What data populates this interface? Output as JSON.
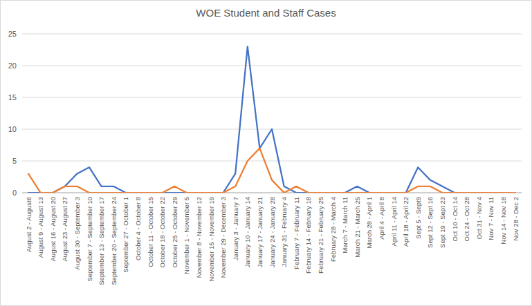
{
  "chart_data": {
    "type": "line",
    "title": "WOE Student and Staff Cases",
    "categories": [
      "August 2 - August6",
      "August 9 - August 13",
      "August 16 - August 20",
      "August 23 - August 27",
      "August 30 - September 3",
      "September 7 - September 10",
      "September 13 - September 17",
      "September 20 - September 24",
      "September 27 - October 1",
      "October 4 - October 8",
      "October 11 - October 15",
      "October 18 - October 22",
      "October 25 - October 29",
      "November 1 - November 5",
      "November 8 - November 12",
      "November 15 - November 19",
      "November 29 - December 3",
      "January 3 - January 7",
      "January 10 - January 14",
      "January 17 - January 21",
      "January 24 - January 28",
      "January 31 - February 4",
      "February 7 - February 11",
      "February 14 - February 18",
      "February 21 - February 25",
      "February 28 - March 4",
      "March 7 - March 11",
      "March 21 - March 25",
      "March 28 - April 1",
      "April 4 - April 8",
      "April 11 - April 14",
      "April 18 - April 22",
      "Sept 5 - Sept9",
      "Sept 12 - Sept 16",
      "Sept 19 - Sept 23",
      "Oct 10 - Oct 14",
      "Oct 24 - Oct 28",
      "Oct 31 - Nov 4",
      "Nov 7 - Nov 11",
      "Nov 14 - Nov 18",
      "Nov 28 - Dec 2"
    ],
    "series": [
      {
        "color": "#4472c4",
        "values": [
          0,
          0,
          0,
          1,
          3,
          4,
          1,
          1,
          0,
          0,
          0,
          0,
          0,
          0,
          0,
          0,
          0,
          3,
          23,
          7,
          10,
          1,
          0,
          0,
          0,
          0,
          0,
          1,
          0,
          0,
          0,
          0,
          4,
          2,
          1,
          0,
          0,
          0,
          0,
          0,
          0
        ]
      },
      {
        "color": "#ed7d31",
        "values": [
          3,
          0,
          0,
          1,
          1,
          0,
          0,
          0,
          0,
          0,
          0,
          0,
          1,
          0,
          0,
          0,
          0,
          1,
          5,
          7,
          2,
          0,
          1,
          0,
          0,
          0,
          0,
          0,
          0,
          0,
          0,
          0,
          1,
          1,
          0,
          0,
          0,
          0,
          0,
          0,
          0
        ]
      }
    ],
    "ylim": [
      0,
      25
    ],
    "yticks": [
      0,
      5,
      10,
      15,
      20,
      25
    ],
    "grid": true
  }
}
